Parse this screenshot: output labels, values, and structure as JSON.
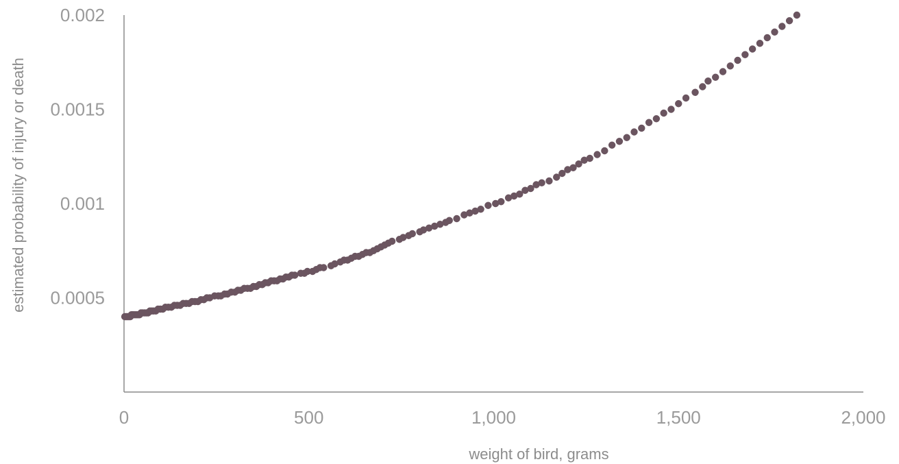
{
  "chart_data": {
    "type": "scatter",
    "title": "",
    "xlabel": "weight of bird, grams",
    "ylabel": "estimated probability of injury or death",
    "xlim": [
      0,
      2000
    ],
    "ylim": [
      0,
      0.002
    ],
    "x_ticks": [
      0,
      500,
      1000,
      1500,
      2000
    ],
    "x_tick_labels": [
      "0",
      "500",
      "1,000",
      "1,500",
      "2,000"
    ],
    "y_ticks": [
      0.0005,
      0.001,
      0.0015,
      0.002
    ],
    "y_tick_labels": [
      "0.0005",
      "0.001",
      "0.0015",
      "0.002"
    ],
    "grid": false,
    "marker_color": "#6b5560",
    "axis_color": "#8a8a8a",
    "series": [
      {
        "points": [
          [
            2,
            0.0004
          ],
          [
            5,
            0.0004
          ],
          [
            8,
            0.0004
          ],
          [
            11,
            0.0004
          ],
          [
            14,
            0.0004
          ],
          [
            17,
            0.0004
          ],
          [
            20,
            0.00041
          ],
          [
            23,
            0.00041
          ],
          [
            26,
            0.00041
          ],
          [
            30,
            0.00041
          ],
          [
            34,
            0.00041
          ],
          [
            38,
            0.00041
          ],
          [
            42,
            0.00041
          ],
          [
            46,
            0.00042
          ],
          [
            50,
            0.00042
          ],
          [
            55,
            0.00042
          ],
          [
            60,
            0.00042
          ],
          [
            65,
            0.00042
          ],
          [
            70,
            0.00043
          ],
          [
            75,
            0.00043
          ],
          [
            80,
            0.00043
          ],
          [
            86,
            0.00043
          ],
          [
            92,
            0.00044
          ],
          [
            98,
            0.00044
          ],
          [
            105,
            0.00044
          ],
          [
            112,
            0.00045
          ],
          [
            120,
            0.00045
          ],
          [
            128,
            0.00045
          ],
          [
            136,
            0.00046
          ],
          [
            144,
            0.00046
          ],
          [
            152,
            0.00046
          ],
          [
            160,
            0.00047
          ],
          [
            168,
            0.00047
          ],
          [
            176,
            0.00047
          ],
          [
            184,
            0.00048
          ],
          [
            192,
            0.00048
          ],
          [
            200,
            0.00048
          ],
          [
            208,
            0.00049
          ],
          [
            216,
            0.00049
          ],
          [
            224,
            0.0005
          ],
          [
            232,
            0.0005
          ],
          [
            245,
            0.00051
          ],
          [
            255,
            0.00051
          ],
          [
            262,
            0.00051
          ],
          [
            272,
            0.00052
          ],
          [
            280,
            0.00052
          ],
          [
            290,
            0.00053
          ],
          [
            300,
            0.00053
          ],
          [
            308,
            0.00054
          ],
          [
            316,
            0.00054
          ],
          [
            325,
            0.00055
          ],
          [
            334,
            0.00055
          ],
          [
            342,
            0.00055
          ],
          [
            350,
            0.00056
          ],
          [
            358,
            0.00056
          ],
          [
            366,
            0.00057
          ],
          [
            374,
            0.00057
          ],
          [
            382,
            0.00058
          ],
          [
            390,
            0.00058
          ],
          [
            398,
            0.00059
          ],
          [
            406,
            0.00059
          ],
          [
            414,
            0.00059
          ],
          [
            422,
            0.0006
          ],
          [
            430,
            0.0006
          ],
          [
            438,
            0.00061
          ],
          [
            446,
            0.00061
          ],
          [
            454,
            0.00062
          ],
          [
            462,
            0.00062
          ],
          [
            478,
            0.00063
          ],
          [
            488,
            0.00063
          ],
          [
            496,
            0.00064
          ],
          [
            510,
            0.00064
          ],
          [
            520,
            0.00065
          ],
          [
            530,
            0.00066
          ],
          [
            540,
            0.00066
          ],
          [
            560,
            0.00067
          ],
          [
            570,
            0.00068
          ],
          [
            585,
            0.00069
          ],
          [
            595,
            0.0007
          ],
          [
            605,
            0.0007
          ],
          [
            615,
            0.00071
          ],
          [
            625,
            0.00072
          ],
          [
            635,
            0.00072
          ],
          [
            645,
            0.00073
          ],
          [
            655,
            0.00074
          ],
          [
            665,
            0.00074
          ],
          [
            675,
            0.00075
          ],
          [
            685,
            0.00076
          ],
          [
            695,
            0.00077
          ],
          [
            705,
            0.00078
          ],
          [
            715,
            0.00079
          ],
          [
            725,
            0.0008
          ],
          [
            745,
            0.00081
          ],
          [
            755,
            0.00082
          ],
          [
            770,
            0.00083
          ],
          [
            780,
            0.00084
          ],
          [
            800,
            0.00085
          ],
          [
            810,
            0.00086
          ],
          [
            825,
            0.00087
          ],
          [
            840,
            0.00088
          ],
          [
            855,
            0.00089
          ],
          [
            870,
            0.0009
          ],
          [
            880,
            0.00091
          ],
          [
            900,
            0.00092
          ],
          [
            920,
            0.00094
          ],
          [
            935,
            0.00095
          ],
          [
            950,
            0.00096
          ],
          [
            965,
            0.00097
          ],
          [
            985,
            0.00099
          ],
          [
            1005,
            0.001
          ],
          [
            1020,
            0.00101
          ],
          [
            1040,
            0.00103
          ],
          [
            1055,
            0.00104
          ],
          [
            1070,
            0.00105
          ],
          [
            1085,
            0.00107
          ],
          [
            1100,
            0.00108
          ],
          [
            1115,
            0.0011
          ],
          [
            1130,
            0.00111
          ],
          [
            1150,
            0.00112
          ],
          [
            1170,
            0.00114
          ],
          [
            1185,
            0.00116
          ],
          [
            1200,
            0.00118
          ],
          [
            1215,
            0.00119
          ],
          [
            1230,
            0.00121
          ],
          [
            1245,
            0.00123
          ],
          [
            1260,
            0.00124
          ],
          [
            1280,
            0.00126
          ],
          [
            1300,
            0.00128
          ],
          [
            1320,
            0.00131
          ],
          [
            1340,
            0.00133
          ],
          [
            1360,
            0.00135
          ],
          [
            1380,
            0.00138
          ],
          [
            1400,
            0.0014
          ],
          [
            1420,
            0.00143
          ],
          [
            1440,
            0.00145
          ],
          [
            1460,
            0.00148
          ],
          [
            1480,
            0.0015
          ],
          [
            1500,
            0.00153
          ],
          [
            1520,
            0.00156
          ],
          [
            1545,
            0.00159
          ],
          [
            1565,
            0.00162
          ],
          [
            1580,
            0.00165
          ],
          [
            1600,
            0.00167
          ],
          [
            1620,
            0.0017
          ],
          [
            1640,
            0.00173
          ],
          [
            1660,
            0.00176
          ],
          [
            1680,
            0.00179
          ],
          [
            1700,
            0.00182
          ],
          [
            1720,
            0.00185
          ],
          [
            1740,
            0.00188
          ],
          [
            1760,
            0.00191
          ],
          [
            1780,
            0.00194
          ],
          [
            1800,
            0.00197
          ],
          [
            1820,
            0.002
          ]
        ]
      }
    ]
  }
}
